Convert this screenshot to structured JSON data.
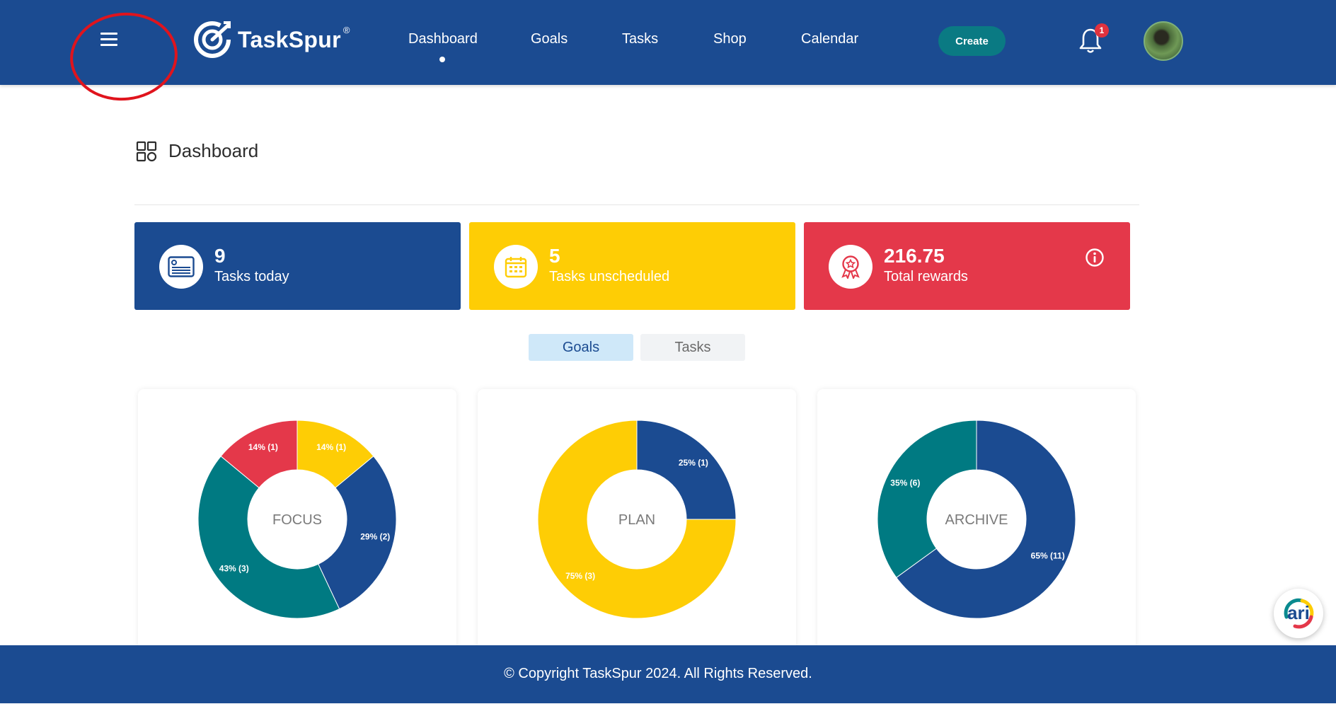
{
  "header": {
    "brand": "TaskSpur",
    "brand_mark": "®",
    "nav": [
      {
        "label": "Dashboard",
        "active": true
      },
      {
        "label": "Goals",
        "active": false
      },
      {
        "label": "Tasks",
        "active": false
      },
      {
        "label": "Shop",
        "active": false
      },
      {
        "label": "Calendar",
        "active": false
      }
    ],
    "create_label": "Create",
    "notification_count": "1",
    "icons": {
      "menu": "hamburger-menu-icon",
      "bell": "bell-icon",
      "avatar": "user-avatar"
    }
  },
  "page": {
    "title": "Dashboard",
    "icon": "grid-icon"
  },
  "stats": [
    {
      "value": "9",
      "label": "Tasks today",
      "color": "#1b4b91",
      "icon": "card-icon"
    },
    {
      "value": "5",
      "label": "Tasks unscheduled",
      "color": "#fecd05",
      "icon": "calendar-icon"
    },
    {
      "value": "216.75",
      "label": "Total rewards",
      "color": "#e4384a",
      "icon": "award-icon",
      "info_icon": "info-icon"
    }
  ],
  "tabs": [
    {
      "label": "Goals",
      "active": true
    },
    {
      "label": "Tasks",
      "active": false
    }
  ],
  "chart_data": [
    {
      "type": "pie",
      "title": "FOCUS",
      "slices": [
        {
          "value": 14,
          "label": "14% (1)",
          "color": "#fecd05"
        },
        {
          "value": 29,
          "label": "29% (2)",
          "color": "#1b4b91"
        },
        {
          "value": 43,
          "label": "43% (3)",
          "color": "#007a82"
        },
        {
          "value": 14,
          "label": "14% (1)",
          "color": "#e4384a"
        }
      ]
    },
    {
      "type": "pie",
      "title": "PLAN",
      "slices": [
        {
          "value": 25,
          "label": "25% (1)",
          "color": "#1b4b91"
        },
        {
          "value": 75,
          "label": "75% (3)",
          "color": "#fecd05"
        }
      ]
    },
    {
      "type": "pie",
      "title": "ARCHIVE",
      "slices": [
        {
          "value": 65,
          "label": "65% (11)",
          "color": "#1b4b91"
        },
        {
          "value": 35,
          "label": "35% (6)",
          "color": "#007a82"
        }
      ]
    }
  ],
  "footer": {
    "text": "© Copyright TaskSpur 2024. All Rights Reserved."
  },
  "assistant": {
    "label": "ari"
  }
}
